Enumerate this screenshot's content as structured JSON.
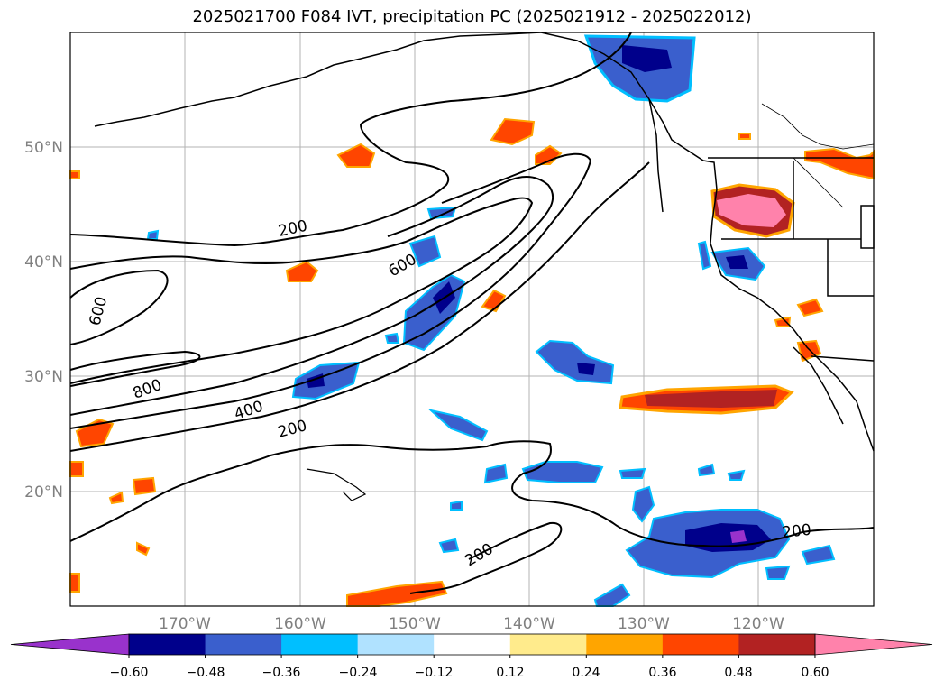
{
  "title": "2025021700 F084 IVT, precipitation PC (2025021912 - 2025022012)",
  "lat_labels": [
    "50°N",
    "40°N",
    "30°N",
    "20°N"
  ],
  "lon_labels": [
    "170°W",
    "160°W",
    "150°W",
    "140°W",
    "130°W",
    "120°W"
  ],
  "contour_labels": [
    "200",
    "600",
    "600",
    "800",
    "400",
    "200",
    "200",
    "200"
  ],
  "colorbar": {
    "colors": [
      "#9932cc",
      "#00008b",
      "#3a5fcd",
      "#00bfff",
      "#b0e2ff",
      "#ffffff",
      "#ffeb8c",
      "#ffa500",
      "#ff4500",
      "#b22222",
      "#ff82ab"
    ],
    "tick_labels": [
      "−0.60",
      "−0.48",
      "−0.36",
      "−0.24",
      "−0.12",
      "0.12",
      "0.24",
      "0.36",
      "0.48",
      "0.60"
    ]
  },
  "colors": {
    "land_outline": "#000000",
    "grid": "#b3b3b3",
    "axis_label": "#808080"
  }
}
